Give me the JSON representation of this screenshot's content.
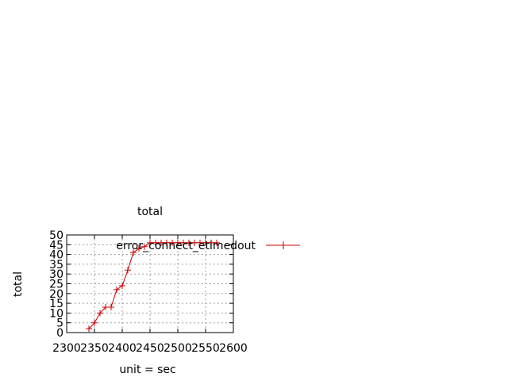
{
  "chart_data": {
    "type": "line",
    "title": "total",
    "xlabel": "unit = sec",
    "ylabel": "total",
    "xlim": [
      2300,
      2600
    ],
    "ylim": [
      0,
      50
    ],
    "x_ticks": [
      2300,
      2350,
      2400,
      2450,
      2500,
      2550,
      2600
    ],
    "y_ticks": [
      0,
      5,
      10,
      15,
      20,
      25,
      30,
      35,
      40,
      45,
      50
    ],
    "grid": true,
    "legend_position": "top-right",
    "series": [
      {
        "name": "error_connect_etimedout",
        "color": "#cc0000",
        "marker": "plus",
        "x": [
          2340,
          2350,
          2360,
          2370,
          2380,
          2390,
          2400,
          2410,
          2420,
          2430,
          2440,
          2450,
          2460,
          2470,
          2480,
          2490,
          2500,
          2510,
          2520,
          2530,
          2540,
          2550,
          2560,
          2570
        ],
        "y": [
          2,
          5,
          10,
          13,
          13,
          22,
          24,
          32,
          41,
          43,
          44,
          46,
          46,
          46,
          46,
          46,
          46,
          46,
          46,
          46,
          46,
          46,
          46,
          46
        ]
      }
    ]
  }
}
